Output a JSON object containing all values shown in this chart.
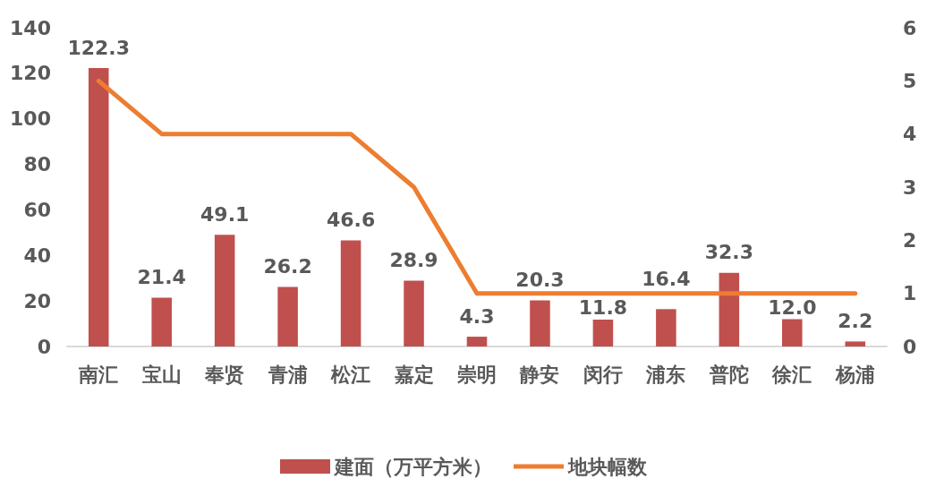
{
  "chart_data": {
    "type": "bar",
    "categories": [
      "南汇",
      "宝山",
      "奉贤",
      "青浦",
      "松江",
      "嘉定",
      "崇明",
      "静安",
      "闵行",
      "浦东",
      "普陀",
      "徐汇",
      "杨浦"
    ],
    "series": [
      {
        "name": "建面（万平方米）",
        "color": "#c0504d",
        "values": [
          122.3,
          21.4,
          49.1,
          26.2,
          46.6,
          28.9,
          4.3,
          20.3,
          11.8,
          16.4,
          32.3,
          12.0,
          2.2
        ],
        "value_labels": [
          "122.3",
          "21.4",
          "49.1",
          "26.2",
          "46.6",
          "28.9",
          "4.3",
          "20.3",
          "11.8",
          "16.4",
          "32.3",
          "12.0",
          "2.2"
        ]
      },
      {
        "name": "地块幅数",
        "type": "line",
        "axis": "y2",
        "color": "#ed7d31",
        "values": [
          5,
          4,
          4,
          4,
          4,
          3,
          1,
          1,
          1,
          1,
          1,
          1,
          1
        ]
      }
    ],
    "ylim": [
      0,
      140
    ],
    "yticks": [
      0,
      20,
      40,
      60,
      80,
      100,
      120,
      140
    ],
    "y2lim": [
      0,
      6
    ],
    "y2ticks": [
      0,
      1,
      2,
      3,
      4,
      5,
      6
    ],
    "grid": false,
    "legend": "bottom",
    "marker": "none",
    "line_style": "solid"
  }
}
